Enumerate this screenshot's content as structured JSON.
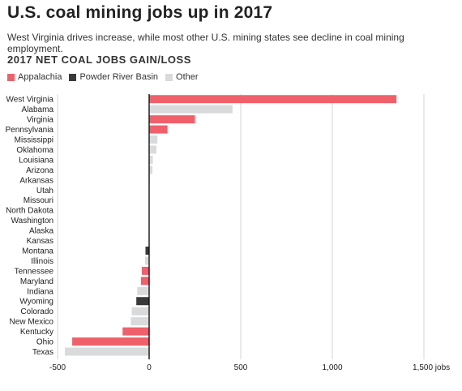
{
  "header": {
    "title": "U.S. coal mining jobs up in 2017",
    "subtitle": "West Virginia drives increase, while most other U.S. mining states see decline in coal mining employment."
  },
  "chart_data": {
    "type": "bar",
    "orientation": "horizontal",
    "title": "2017 NET COAL JOBS GAIN/LOSS",
    "legend": [
      {
        "name": "Appalachia",
        "color": "#f0606a"
      },
      {
        "name": "Powder River Basin",
        "color": "#3a3a3a"
      },
      {
        "name": "Other",
        "color": "#d9dadc"
      }
    ],
    "legend_position": "top-left",
    "xlim": [
      -500,
      1500
    ],
    "x_ticks": [
      {
        "value": -500,
        "label": "-500"
      },
      {
        "value": 0,
        "label": "0"
      },
      {
        "value": 500,
        "label": "500"
      },
      {
        "value": 1000,
        "label": "1,000"
      },
      {
        "value": 1500,
        "label": "1,500 jobs"
      }
    ],
    "grid": true,
    "bars": [
      {
        "category": "West Virginia",
        "value": 1350,
        "group": "Appalachia"
      },
      {
        "category": "Alabama",
        "value": 455,
        "group": "Other"
      },
      {
        "category": "Virginia",
        "value": 250,
        "group": "Appalachia"
      },
      {
        "category": "Pennsylvania",
        "value": 100,
        "group": "Appalachia"
      },
      {
        "category": "Mississippi",
        "value": 45,
        "group": "Other"
      },
      {
        "category": "Oklahoma",
        "value": 40,
        "group": "Other"
      },
      {
        "category": "Louisiana",
        "value": 20,
        "group": "Other"
      },
      {
        "category": "Arizona",
        "value": 18,
        "group": "Other"
      },
      {
        "category": "Arkansas",
        "value": 3,
        "group": "Other"
      },
      {
        "category": "Utah",
        "value": 2,
        "group": "Other"
      },
      {
        "category": "Missouri",
        "value": 1,
        "group": "Other"
      },
      {
        "category": "North Dakota",
        "value": 1,
        "group": "Other"
      },
      {
        "category": "Washington",
        "value": 0,
        "group": "Other"
      },
      {
        "category": "Alaska",
        "value": 0,
        "group": "Other"
      },
      {
        "category": "Kansas",
        "value": -3,
        "group": "Other"
      },
      {
        "category": "Montana",
        "value": -20,
        "group": "Powder River Basin"
      },
      {
        "category": "Illinois",
        "value": -22,
        "group": "Other"
      },
      {
        "category": "Tennessee",
        "value": -40,
        "group": "Appalachia"
      },
      {
        "category": "Maryland",
        "value": -45,
        "group": "Appalachia"
      },
      {
        "category": "Indiana",
        "value": -65,
        "group": "Other"
      },
      {
        "category": "Wyoming",
        "value": -70,
        "group": "Powder River Basin"
      },
      {
        "category": "Colorado",
        "value": -95,
        "group": "Other"
      },
      {
        "category": "New Mexico",
        "value": -100,
        "group": "Other"
      },
      {
        "category": "Kentucky",
        "value": -145,
        "group": "Appalachia"
      },
      {
        "category": "Ohio",
        "value": -420,
        "group": "Appalachia"
      },
      {
        "category": "Texas",
        "value": -460,
        "group": "Other"
      }
    ]
  }
}
